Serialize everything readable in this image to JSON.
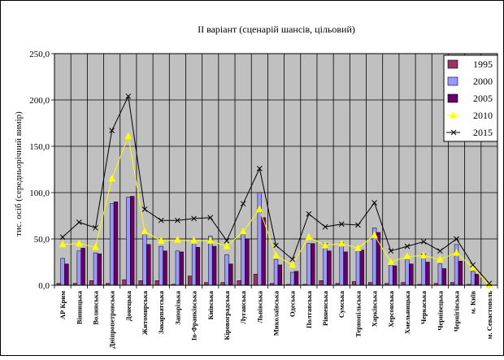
{
  "chart_data": {
    "type": "bar",
    "title": "ІІ варіант (сценарій шансів, цільовий)",
    "xlabel": "",
    "ylabel": "тис. осіб (середньорічний вимір)",
    "ylim": [
      0,
      250
    ],
    "yticks": [
      "0,0",
      "50,0",
      "100,0",
      "150,0",
      "200,0",
      "250,0"
    ],
    "grid": true,
    "legend_position": "right",
    "categories": [
      "АР Крим",
      "Вінницька",
      "Волинська",
      "Дніпропетровська",
      "Донецька",
      "Житомирська",
      "Закарпатська",
      "Запорізька",
      "Ів-Франківська",
      "Київська",
      "Кіровоградська",
      "Луганська",
      "Львівська",
      "Миколаївська",
      "Одеська",
      "Полтавська",
      "Рівненська",
      "Сумська",
      "Тернопільська",
      "Харківська",
      "Херсонська",
      "Хмельницька",
      "Черкаська",
      "Чернівецька",
      "Чернігівська",
      "м. Київ",
      "м. Севастополь"
    ],
    "series": [
      {
        "name": "1995",
        "kind": "bar",
        "color": "#993366",
        "values": [
          2,
          2,
          5,
          2,
          6,
          5,
          5,
          1,
          10,
          3,
          3,
          5,
          12,
          2,
          1,
          1,
          5,
          2,
          4,
          3,
          2,
          3,
          1,
          2,
          3,
          1,
          0
        ]
      },
      {
        "name": "2000",
        "kind": "bar",
        "color": "#9999ff",
        "values": [
          29,
          37,
          35,
          88,
          95,
          55,
          42,
          37,
          46,
          53,
          33,
          55,
          100,
          28,
          14,
          45,
          45,
          46,
          39,
          62,
          22,
          28,
          34,
          23,
          44,
          15,
          1
        ]
      },
      {
        "name": "2005",
        "kind": "bar",
        "color": "#660066",
        "values": [
          23,
          40,
          34,
          90,
          96,
          44,
          37,
          36,
          41,
          42,
          23,
          50,
          73,
          22,
          15,
          45,
          37,
          36,
          38,
          57,
          21,
          23,
          25,
          18,
          26,
          12,
          0
        ]
      },
      {
        "name": "2010",
        "kind": "line",
        "color": "#ffff00",
        "marker": "triangle",
        "values": [
          44,
          45,
          41,
          115,
          161,
          58,
          48,
          49,
          48,
          48,
          42,
          58,
          82,
          32,
          22,
          52,
          43,
          45,
          40,
          54,
          25,
          31,
          32,
          28,
          35,
          19,
          0
        ]
      },
      {
        "name": "2015",
        "kind": "line",
        "color": "#000000",
        "marker": "x",
        "values": [
          52,
          68,
          62,
          167,
          204,
          82,
          70,
          70,
          72,
          73,
          48,
          88,
          126,
          43,
          28,
          77,
          63,
          66,
          65,
          89,
          37,
          42,
          47,
          37,
          50,
          22,
          2
        ]
      }
    ]
  }
}
